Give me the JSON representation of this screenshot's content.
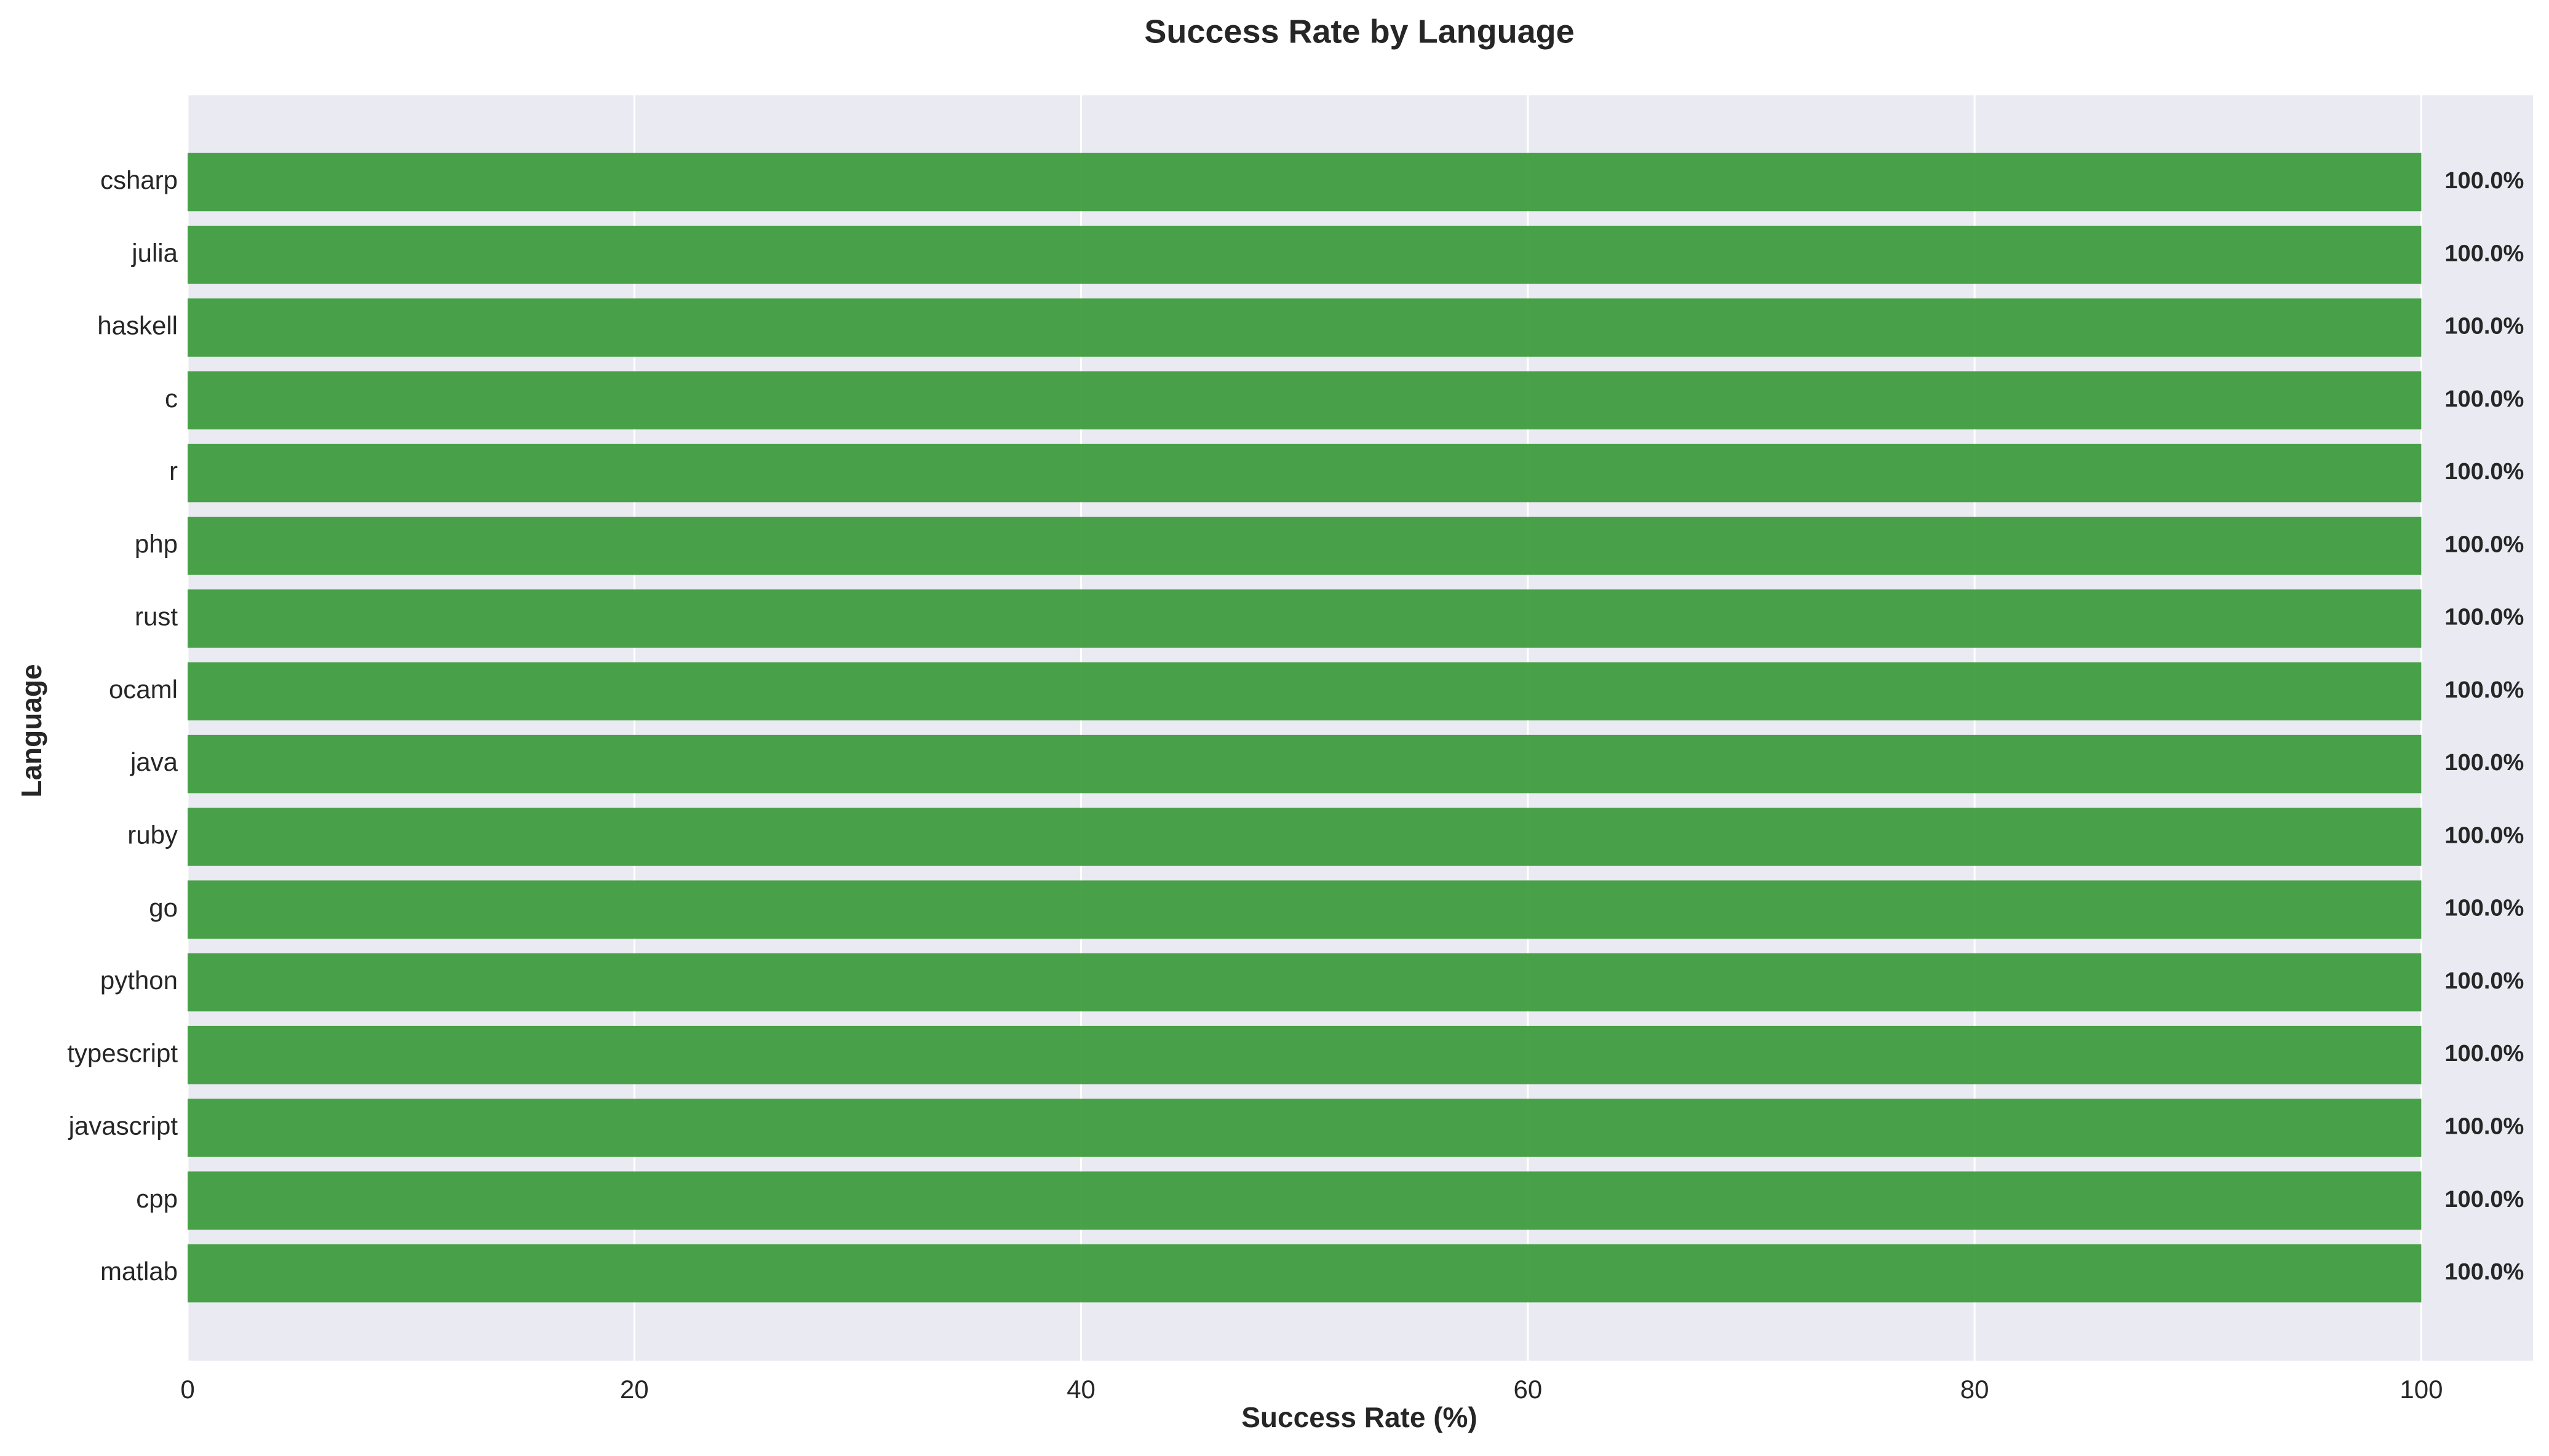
{
  "chart_data": {
    "type": "bar",
    "orientation": "horizontal",
    "title": "Success Rate by Language",
    "xlabel": "Success Rate (%)",
    "ylabel": "Language",
    "categories": [
      "csharp",
      "julia",
      "haskell",
      "c",
      "r",
      "php",
      "rust",
      "ocaml",
      "java",
      "ruby",
      "go",
      "python",
      "typescript",
      "javascript",
      "cpp",
      "matlab"
    ],
    "values": [
      100,
      100,
      100,
      100,
      100,
      100,
      100,
      100,
      100,
      100,
      100,
      100,
      100,
      100,
      100,
      100
    ],
    "value_labels": [
      "100.0%",
      "100.0%",
      "100.0%",
      "100.0%",
      "100.0%",
      "100.0%",
      "100.0%",
      "100.0%",
      "100.0%",
      "100.0%",
      "100.0%",
      "100.0%",
      "100.0%",
      "100.0%",
      "100.0%",
      "100.0%"
    ],
    "xlim": [
      0,
      105
    ],
    "xticks": [
      0,
      20,
      40,
      60,
      80,
      100
    ],
    "grid": true,
    "colors": {
      "bar": "#3a9a3a",
      "plot_background": "#eaeaf2",
      "gridline": "#ffffff",
      "text": "#262626"
    }
  }
}
